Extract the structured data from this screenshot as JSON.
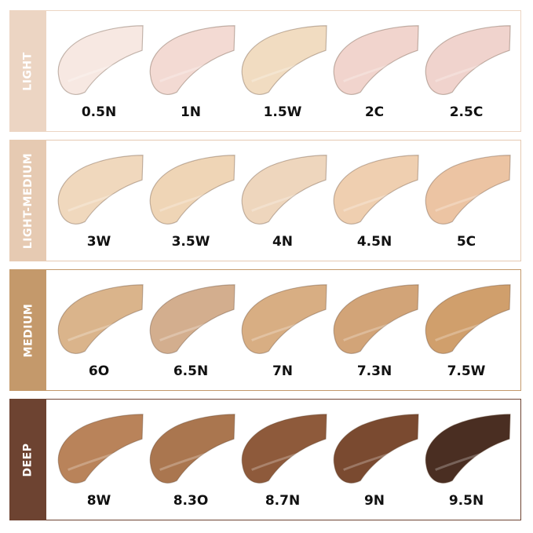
{
  "groups": [
    {
      "name": "LIGHT",
      "color": "#ecd5c3",
      "shades": [
        {
          "label": "0.5N",
          "color": "#f7e8e2"
        },
        {
          "label": "1N",
          "color": "#f3dad3"
        },
        {
          "label": "1.5W",
          "color": "#f1dcc1"
        },
        {
          "label": "2C",
          "color": "#f1d4cd"
        },
        {
          "label": "2.5C",
          "color": "#f0d3cd"
        }
      ]
    },
    {
      "name": "LIGHT-MEDIUM",
      "color": "#e6cab2",
      "shades": [
        {
          "label": "3W",
          "color": "#f0d8bd"
        },
        {
          "label": "3.5W",
          "color": "#efd5b6"
        },
        {
          "label": "4N",
          "color": "#eed6bd"
        },
        {
          "label": "4.5N",
          "color": "#efcfb0"
        },
        {
          "label": "5C",
          "color": "#ecc4a3"
        }
      ]
    },
    {
      "name": "MEDIUM",
      "color": "#c4996b",
      "shades": [
        {
          "label": "6O",
          "color": "#dab48b"
        },
        {
          "label": "6.5N",
          "color": "#d3ae8e"
        },
        {
          "label": "7N",
          "color": "#d8ae83"
        },
        {
          "label": "7.3N",
          "color": "#d2a478"
        },
        {
          "label": "7.5W",
          "color": "#d09f6c"
        }
      ]
    },
    {
      "name": "DEEP",
      "color": "#6d4331",
      "shades": [
        {
          "label": "8W",
          "color": "#b9835a"
        },
        {
          "label": "8.3O",
          "color": "#aa764f"
        },
        {
          "label": "8.7N",
          "color": "#8e5a3b"
        },
        {
          "label": "9N",
          "color": "#7a4a30"
        },
        {
          "label": "9.5N",
          "color": "#4a2e22"
        }
      ]
    }
  ]
}
